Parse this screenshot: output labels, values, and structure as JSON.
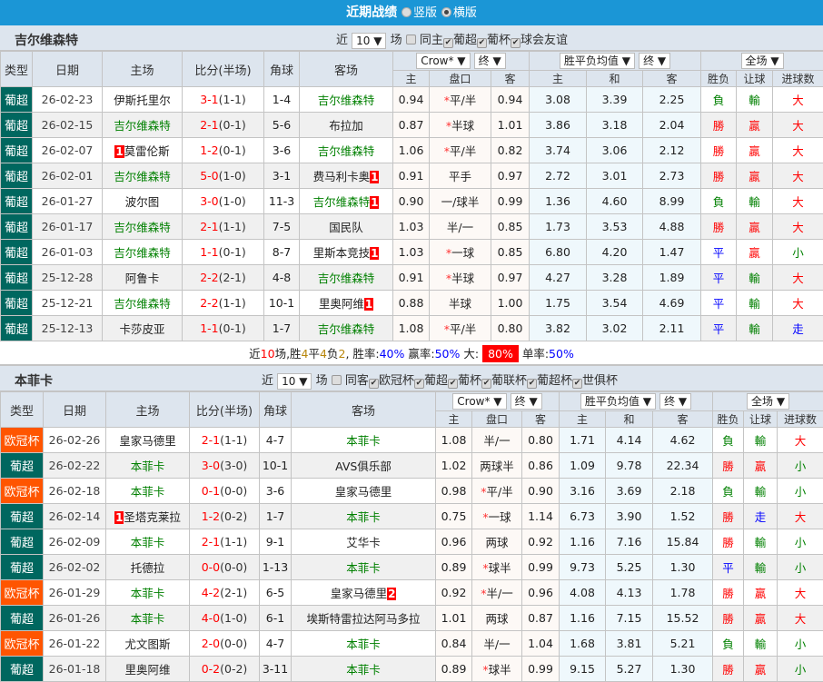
{
  "header": {
    "title": "近期战绩",
    "options": [
      "竖版",
      "横版"
    ],
    "selected": "横版"
  },
  "colors": {
    "header_bg": "#1b96d6",
    "league_bg": {
      "葡超": "#00675f",
      "欧冠杯": "#ff5500"
    },
    "win": "#ff0000",
    "draw": "#0000ff",
    "loss": "#008000",
    "highlight_team": "#008000"
  },
  "columns": {
    "type": "类型",
    "date": "日期",
    "home": "主场",
    "score": "比分(半场)",
    "corner": "角球",
    "away": "客场",
    "home_odds": "主",
    "handicap": "盘口",
    "away_odds": "客",
    "avg_home": "主",
    "avg_draw": "和",
    "avg_away": "客",
    "result": "胜负",
    "hc_result": "让球",
    "goals": "进球数"
  },
  "sections": [
    {
      "team": "吉尔维森特",
      "filters": {
        "near": "近",
        "count": "10",
        "unit": "场",
        "same": "同主",
        "same_checked": false,
        "leagues": [
          "葡超",
          "葡杯",
          "球会友谊"
        ]
      },
      "selects": {
        "company": "Crow*",
        "stage": "终",
        "avg": "胜平负均值",
        "stage2": "终",
        "period": "全场"
      },
      "rows": [
        {
          "type": "葡超",
          "date": "26-02-23",
          "home": "伊斯托里尔",
          "away": "吉尔维森特",
          "hl": "away",
          "score": "3-1",
          "half": "(1-1)",
          "corner": "1-4",
          "h": "0.94",
          "hc": "平/半",
          "star": true,
          "a": "0.94",
          "ah": "3.08",
          "ad": "3.39",
          "aa": "2.25",
          "r": "負",
          "hr": "輸",
          "g": "大"
        },
        {
          "type": "葡超",
          "date": "26-02-15",
          "home": "吉尔维森特",
          "away": "布拉加",
          "hl": "home",
          "score": "2-1",
          "half": "(0-1)",
          "corner": "5-6",
          "h": "0.87",
          "hc": "半球",
          "star": true,
          "a": "1.01",
          "ah": "3.86",
          "ad": "3.18",
          "aa": "2.04",
          "r": "勝",
          "hr": "贏",
          "g": "大"
        },
        {
          "type": "葡超",
          "date": "26-02-07",
          "home": "莫雷伦斯",
          "home_badge": "1",
          "away": "吉尔维森特",
          "hl": "away",
          "score": "1-2",
          "half": "(0-1)",
          "corner": "3-6",
          "h": "1.06",
          "hc": "平/半",
          "star": true,
          "a": "0.82",
          "ah": "3.74",
          "ad": "3.06",
          "aa": "2.12",
          "r": "勝",
          "hr": "贏",
          "g": "大"
        },
        {
          "type": "葡超",
          "date": "26-02-01",
          "home": "吉尔维森特",
          "away": "费马利卡奥",
          "away_badge": "1",
          "hl": "home",
          "score": "5-0",
          "half": "(1-0)",
          "corner": "3-1",
          "h": "0.91",
          "hc": "平手",
          "star": false,
          "a": "0.97",
          "ah": "2.72",
          "ad": "3.01",
          "aa": "2.73",
          "r": "勝",
          "hr": "贏",
          "g": "大"
        },
        {
          "type": "葡超",
          "date": "26-01-27",
          "home": "波尔图",
          "away": "吉尔维森特",
          "away_badge": "1",
          "hl": "away",
          "score": "3-0",
          "half": "(1-0)",
          "corner": "11-3",
          "h": "0.90",
          "hc": "一/球半",
          "star": false,
          "a": "0.99",
          "ah": "1.36",
          "ad": "4.60",
          "aa": "8.99",
          "r": "負",
          "hr": "輸",
          "g": "大"
        },
        {
          "type": "葡超",
          "date": "26-01-17",
          "home": "吉尔维森特",
          "away": "国民队",
          "hl": "home",
          "score": "2-1",
          "half": "(1-1)",
          "corner": "7-5",
          "h": "1.03",
          "hc": "半/一",
          "star": false,
          "a": "0.85",
          "ah": "1.73",
          "ad": "3.53",
          "aa": "4.88",
          "r": "勝",
          "hr": "贏",
          "g": "大"
        },
        {
          "type": "葡超",
          "date": "26-01-03",
          "home": "吉尔维森特",
          "away": "里斯本竞技",
          "away_badge": "1",
          "hl": "home",
          "score": "1-1",
          "half": "(0-1)",
          "corner": "8-7",
          "h": "1.03",
          "hc": "一球",
          "star": true,
          "a": "0.85",
          "ah": "6.80",
          "ad": "4.20",
          "aa": "1.47",
          "r": "平",
          "hr": "贏",
          "g": "小"
        },
        {
          "type": "葡超",
          "date": "25-12-28",
          "home": "阿鲁卡",
          "away": "吉尔维森特",
          "hl": "away",
          "score": "2-2",
          "half": "(2-1)",
          "corner": "4-8",
          "h": "0.91",
          "hc": "半球",
          "star": true,
          "a": "0.97",
          "ah": "4.27",
          "ad": "3.28",
          "aa": "1.89",
          "r": "平",
          "hr": "輸",
          "g": "大"
        },
        {
          "type": "葡超",
          "date": "25-12-21",
          "home": "吉尔维森特",
          "away": "里奥阿维",
          "away_badge": "1",
          "hl": "home",
          "score": "2-2",
          "half": "(1-1)",
          "corner": "10-1",
          "h": "0.88",
          "hc": "半球",
          "star": false,
          "a": "1.00",
          "ah": "1.75",
          "ad": "3.54",
          "aa": "4.69",
          "r": "平",
          "hr": "輸",
          "g": "大"
        },
        {
          "type": "葡超",
          "date": "25-12-13",
          "home": "卡莎皮亚",
          "away": "吉尔维森特",
          "hl": "away",
          "score": "1-1",
          "half": "(0-1)",
          "corner": "1-7",
          "h": "1.08",
          "hc": "平/半",
          "star": true,
          "a": "0.80",
          "ah": "3.82",
          "ad": "3.02",
          "aa": "2.11",
          "r": "平",
          "hr": "輸",
          "g": "走"
        }
      ],
      "summary": {
        "p1": "近",
        "n": "10",
        "p2": "场,胜",
        "w": "4",
        "p3": "平",
        "d": "4",
        "p4": "负",
        "l": "2",
        "p5": ", 胜率:",
        "win_rate": "40%",
        "p6": " 赢率:",
        "hc_rate": "50%",
        "p7": " 大:",
        "big_rate": "80%",
        "p8": " 单率:",
        "odd_rate": "50%"
      }
    },
    {
      "team": "本菲卡",
      "filters": {
        "near": "近",
        "count": "10",
        "unit": "场",
        "same": "同客",
        "same_checked": false,
        "leagues": [
          "欧冠杯",
          "葡超",
          "葡杯",
          "葡联杯",
          "葡超杯",
          "世俱杯"
        ]
      },
      "selects": {
        "company": "Crow*",
        "stage": "终",
        "avg": "胜平负均值",
        "stage2": "终",
        "period": "全场"
      },
      "rows": [
        {
          "type": "欧冠杯",
          "date": "26-02-26",
          "home": "皇家马德里",
          "away": "本菲卡",
          "hl": "away",
          "score": "2-1",
          "half": "(1-1)",
          "corner": "4-7",
          "h": "1.08",
          "hc": "半/一",
          "star": false,
          "a": "0.80",
          "ah": "1.71",
          "ad": "4.14",
          "aa": "4.62",
          "r": "負",
          "hr": "輸",
          "g": "大"
        },
        {
          "type": "葡超",
          "date": "26-02-22",
          "home": "本菲卡",
          "away": "AVS俱乐部",
          "hl": "home",
          "score": "3-0",
          "half": "(3-0)",
          "corner": "10-1",
          "h": "1.02",
          "hc": "两球半",
          "star": false,
          "a": "0.86",
          "ah": "1.09",
          "ad": "9.78",
          "aa": "22.34",
          "r": "勝",
          "hr": "贏",
          "g": "小"
        },
        {
          "type": "欧冠杯",
          "date": "26-02-18",
          "home": "本菲卡",
          "away": "皇家马德里",
          "hl": "home",
          "score": "0-1",
          "half": "(0-0)",
          "corner": "3-6",
          "h": "0.98",
          "hc": "平/半",
          "star": true,
          "a": "0.90",
          "ah": "3.16",
          "ad": "3.69",
          "aa": "2.18",
          "r": "負",
          "hr": "輸",
          "g": "小"
        },
        {
          "type": "葡超",
          "date": "26-02-14",
          "home": "圣塔克莱拉",
          "home_badge": "1",
          "away": "本菲卡",
          "hl": "away",
          "score": "1-2",
          "half": "(0-2)",
          "corner": "1-7",
          "h": "0.75",
          "hc": "一球",
          "star": true,
          "a": "1.14",
          "ah": "6.73",
          "ad": "3.90",
          "aa": "1.52",
          "r": "勝",
          "hr": "走",
          "g": "大"
        },
        {
          "type": "葡超",
          "date": "26-02-09",
          "home": "本菲卡",
          "away": "艾华卡",
          "hl": "home",
          "score": "2-1",
          "half": "(1-1)",
          "corner": "9-1",
          "h": "0.96",
          "hc": "两球",
          "star": false,
          "a": "0.92",
          "ah": "1.16",
          "ad": "7.16",
          "aa": "15.84",
          "r": "勝",
          "hr": "輸",
          "g": "小"
        },
        {
          "type": "葡超",
          "date": "26-02-02",
          "home": "托德拉",
          "away": "本菲卡",
          "hl": "away",
          "score": "0-0",
          "half": "(0-0)",
          "corner": "1-13",
          "h": "0.89",
          "hc": "球半",
          "star": true,
          "a": "0.99",
          "ah": "9.73",
          "ad": "5.25",
          "aa": "1.30",
          "r": "平",
          "hr": "輸",
          "g": "小"
        },
        {
          "type": "欧冠杯",
          "date": "26-01-29",
          "home": "本菲卡",
          "away": "皇家马德里",
          "away_badge": "2",
          "hl": "home",
          "score": "4-2",
          "half": "(2-1)",
          "corner": "6-5",
          "h": "0.92",
          "hc": "半/一",
          "star": true,
          "a": "0.96",
          "ah": "4.08",
          "ad": "4.13",
          "aa": "1.78",
          "r": "勝",
          "hr": "贏",
          "g": "大"
        },
        {
          "type": "葡超",
          "date": "26-01-26",
          "home": "本菲卡",
          "away": "埃斯特雷拉达阿马多拉",
          "hl": "home",
          "score": "4-0",
          "half": "(1-0)",
          "corner": "6-1",
          "h": "1.01",
          "hc": "两球",
          "star": false,
          "a": "0.87",
          "ah": "1.16",
          "ad": "7.15",
          "aa": "15.52",
          "r": "勝",
          "hr": "贏",
          "g": "大"
        },
        {
          "type": "欧冠杯",
          "date": "26-01-22",
          "home": "尤文图斯",
          "away": "本菲卡",
          "hl": "away",
          "score": "2-0",
          "half": "(0-0)",
          "corner": "4-7",
          "h": "0.84",
          "hc": "半/一",
          "star": false,
          "a": "1.04",
          "ah": "1.68",
          "ad": "3.81",
          "aa": "5.21",
          "r": "負",
          "hr": "輸",
          "g": "小"
        },
        {
          "type": "葡超",
          "date": "26-01-18",
          "home": "里奥阿维",
          "away": "本菲卡",
          "hl": "away",
          "score": "0-2",
          "half": "(0-2)",
          "corner": "3-11",
          "h": "0.89",
          "hc": "球半",
          "star": true,
          "a": "0.99",
          "ah": "9.15",
          "ad": "5.27",
          "aa": "1.30",
          "r": "勝",
          "hr": "贏",
          "g": "小"
        }
      ]
    }
  ]
}
